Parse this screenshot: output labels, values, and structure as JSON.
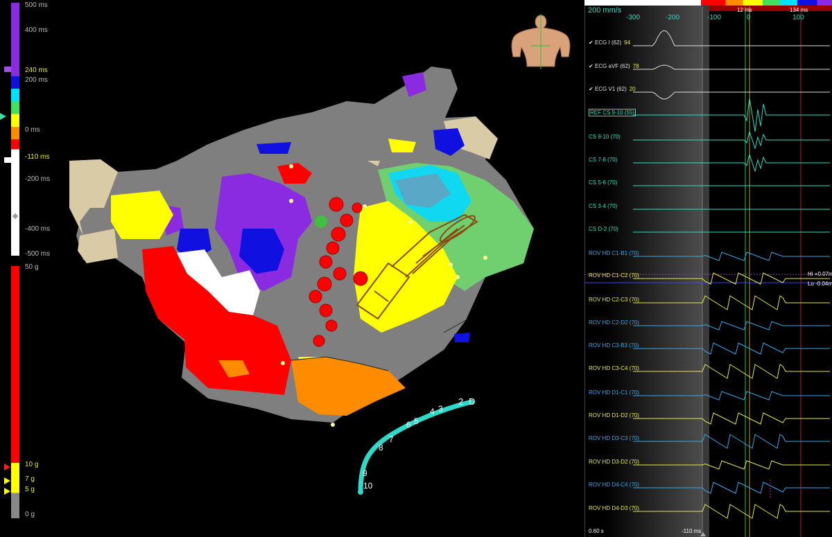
{
  "lat_scale": {
    "labels": [
      "500 ms",
      "400 ms",
      "240 ms",
      "200 ms",
      "0 ms",
      "-110 ms",
      "-200 ms",
      "-400 ms",
      "-500 ms"
    ]
  },
  "force_scale": {
    "labels": [
      "50 g",
      "10 g",
      "7 g",
      "5 g",
      "0 g"
    ]
  },
  "catheter": {
    "labels": [
      "2",
      "D",
      "4",
      "3",
      "6",
      "5",
      "8",
      "7",
      "9",
      "10"
    ]
  },
  "egm": {
    "sweep": "200 mm/s",
    "ticks": [
      "-300",
      "-200",
      "-100",
      "0",
      "100"
    ],
    "badges": [
      "12 ms",
      "134 ms"
    ],
    "traces": [
      {
        "name": "ECG I (62)",
        "value": "94",
        "color": "#e0e0e0"
      },
      {
        "name": "ECG aVF (62)",
        "value": "78",
        "color": "#e0e0e0"
      },
      {
        "name": "ECG V1 (62)",
        "value": "20",
        "color": "#e0e0e0"
      },
      {
        "name": "REF CS 9-10 (55)",
        "value": "",
        "color": "#2ee0c0"
      },
      {
        "name": "CS 9-10 (70)",
        "value": "",
        "color": "#2ee0c0"
      },
      {
        "name": "CS 7-8 (70)",
        "value": "",
        "color": "#2ee0c0"
      },
      {
        "name": "CS 5-6 (70)",
        "value": "",
        "color": "#2ee0c0"
      },
      {
        "name": "CS 3-4 (70)",
        "value": "",
        "color": "#2ee0c0"
      },
      {
        "name": "CS D-2 (70)",
        "value": "",
        "color": "#2ee0c0"
      },
      {
        "name": "ROV HD C1-B1 (70)",
        "value": "",
        "color": "#3aa8e8"
      },
      {
        "name": "ROV HD C1-C2 (70)",
        "value": "",
        "color": "#e8e84a"
      },
      {
        "name": "ROV HD C2-C3 (70)",
        "value": "",
        "color": "#e8e84a"
      },
      {
        "name": "ROV HD C2-D2 (70)",
        "value": "",
        "color": "#3aa8e8"
      },
      {
        "name": "ROV HD C3-B3 (70)",
        "value": "",
        "color": "#3aa8e8"
      },
      {
        "name": "ROV HD C3-C4 (70)",
        "value": "",
        "color": "#e8e84a"
      },
      {
        "name": "ROV HD D1-C1 (70)",
        "value": "",
        "color": "#3aa8e8"
      },
      {
        "name": "ROV HD D1-D2 (70)",
        "value": "",
        "color": "#e8e84a"
      },
      {
        "name": "ROV HD D3-C3 (70)",
        "value": "",
        "color": "#3aa8e8"
      },
      {
        "name": "ROV HD D3-D2 (70)",
        "value": "",
        "color": "#e8e84a"
      },
      {
        "name": "ROV HD D4-C4 (70)",
        "value": "",
        "color": "#3aa8e8"
      },
      {
        "name": "ROV HD D4-D3 (70)",
        "value": "",
        "color": "#e8e84a"
      }
    ],
    "hi": "Hi +0.07m",
    "lo": "Lo -0.04m",
    "footer_left": "0.60 s",
    "footer_mid": "-110 ms"
  }
}
